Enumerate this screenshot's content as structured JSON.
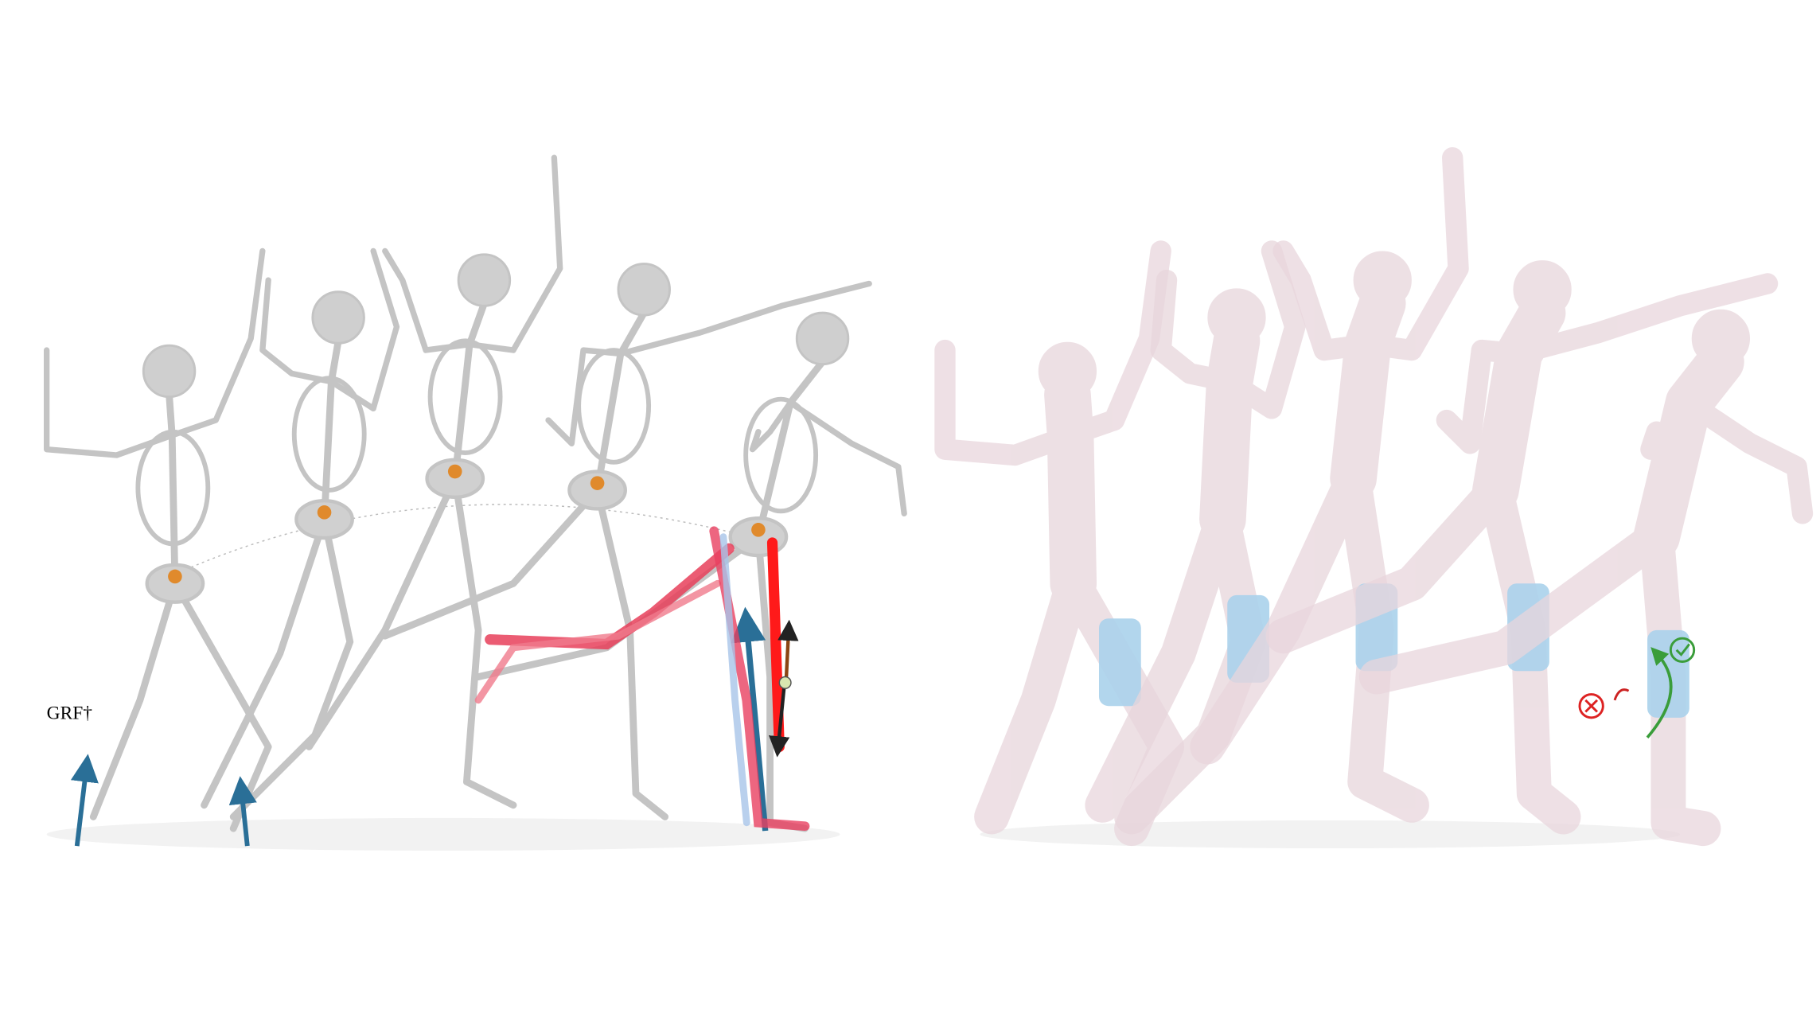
{
  "annotation": "GRF†"
}
